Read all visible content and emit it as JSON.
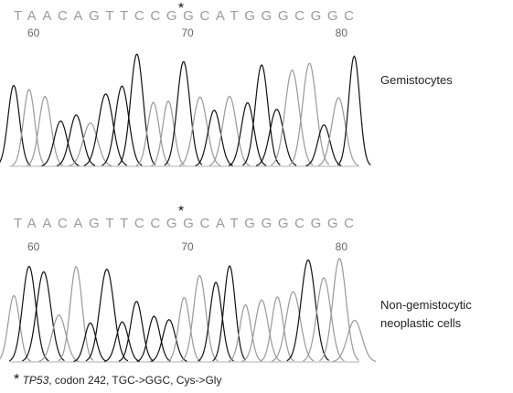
{
  "panels": [
    {
      "marker": "*",
      "sequence": "TAACAGTTCCGGCATGGGCGGC",
      "positions": [
        "60",
        "70",
        "80"
      ],
      "label": [
        "Gemistocytes"
      ]
    },
    {
      "marker": "*",
      "sequence": "TAACAGTTCCGGCATGGGCGGC",
      "positions": [
        "60",
        "70",
        "80"
      ],
      "label": [
        "Non-gemistocytic",
        "neoplastic cells"
      ]
    }
  ],
  "footnote": {
    "marker": "*",
    "gene": "TP53",
    "rest": ", codon 242, TGC->GGC, Cys->Gly"
  }
}
